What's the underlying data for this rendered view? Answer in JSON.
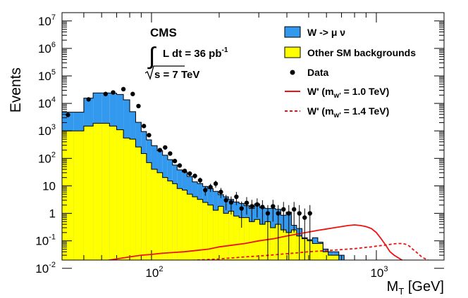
{
  "chart_data": {
    "type": "histogram",
    "title": "",
    "xlabel": "M",
    "xlabel_sub": "T",
    "xlabel_unit": " [GeV]",
    "ylabel": "Events",
    "x_scale": "log",
    "y_scale": "log",
    "xlim": [
      40,
      2000
    ],
    "ylim": [
      0.02,
      20000000
    ],
    "y_ticks": [
      {
        "value": 10000000,
        "base": "10",
        "exp": "7"
      },
      {
        "value": 1000000,
        "base": "10",
        "exp": "6"
      },
      {
        "value": 100000,
        "base": "10",
        "exp": "5"
      },
      {
        "value": 10000,
        "base": "10",
        "exp": "4"
      },
      {
        "value": 1000,
        "base": "10",
        "exp": "3"
      },
      {
        "value": 100,
        "base": "10",
        "exp": "2"
      },
      {
        "value": 10,
        "base": "10",
        "exp": ""
      },
      {
        "value": 1,
        "base": "1",
        "exp": ""
      },
      {
        "value": 0.1,
        "base": "10",
        "exp": "-1"
      },
      {
        "value": 0.01,
        "base": "10",
        "exp": "-2"
      }
    ],
    "x_ticks": [
      {
        "value": 100,
        "base": "10",
        "exp": "2"
      },
      {
        "value": 1000,
        "base": "10",
        "exp": "3"
      }
    ],
    "annotations": {
      "experiment": "CMS",
      "integral_sign": "∫",
      "lumi_text": "L dt = 36 pb",
      "lumi_exp": "-1",
      "energy_text": "s = 7 TeV"
    },
    "legend": {
      "position": "top-right",
      "entries": [
        {
          "label": "W -> μ ν",
          "style": "fill",
          "color": "#3399ee"
        },
        {
          "label": "Other SM backgrounds",
          "style": "fill",
          "color": "#ffff00"
        },
        {
          "label": "Data",
          "style": "marker",
          "color": "#000000"
        },
        {
          "label": "W' (m",
          "sub": "w'",
          "suffix": " = 1.0 TeV)",
          "style": "solid-line",
          "color": "#ee1111"
        },
        {
          "label": "W' (m",
          "sub": "w'",
          "suffix": " = 1.4 TeV)",
          "style": "dashed-line",
          "color": "#ee1111"
        }
      ]
    },
    "bin_edges": [
      40,
      45,
      50,
      55,
      60,
      65,
      70,
      75,
      80,
      85,
      90,
      95,
      100,
      106,
      112,
      118,
      124,
      130,
      137,
      144,
      152,
      160,
      169,
      178,
      188,
      198,
      209,
      220,
      232,
      245,
      258,
      272,
      287,
      303,
      320,
      338,
      356,
      376,
      397,
      419,
      442,
      467,
      493,
      520,
      549,
      579,
      611,
      645,
      681,
      719,
      759,
      801,
      845,
      892,
      941,
      993,
      1048,
      1106,
      1167,
      1232,
      1300,
      1372,
      1448,
      1528,
      1613,
      1702,
      1796,
      1896,
      2000
    ],
    "series": [
      {
        "name": "Other SM backgrounds",
        "color": "#ffff00",
        "values": [
          1000,
          1000,
          1500,
          1900,
          1900,
          1500,
          1100,
          550,
          500,
          260,
          150,
          70,
          40,
          30,
          20,
          15,
          12,
          8,
          7,
          5,
          4,
          3.2,
          2.5,
          2,
          1.3,
          1.8,
          1,
          1.2,
          0.8,
          0.7,
          0.7,
          0.5,
          0.6,
          0.4,
          0.5,
          0.3,
          0.4,
          0.25,
          0.2,
          0.25,
          0.15,
          0.12,
          0.1,
          0.08,
          0.08,
          0.04,
          0.03,
          0.03,
          0.02,
          0.01,
          0.01,
          0.01,
          0.01,
          0.01,
          0.01,
          0.01,
          0.01,
          0.01,
          0.01,
          0.01,
          0.01,
          0.01,
          0.01,
          0.01,
          0.01,
          0.01,
          0.01,
          0.01
        ]
      },
      {
        "name": "W -> μ ν",
        "color": "#3399ee",
        "values": [
          3800,
          3800,
          14000,
          22000,
          22000,
          22000,
          20000,
          13000,
          4500,
          1800,
          800,
          400,
          250,
          160,
          110,
          75,
          45,
          30,
          25,
          17,
          10,
          9,
          7,
          6,
          5,
          3,
          3,
          2,
          1.8,
          1.6,
          1.2,
          1,
          1.6,
          1.2,
          1,
          1.2,
          1,
          0.6,
          0.9,
          0.12,
          0.13,
          0.01,
          0.01,
          0.05,
          0.01,
          0.01,
          0.01,
          0.01,
          0.01,
          0.01,
          0.01,
          0.01,
          0.01,
          0.01,
          0.01,
          0.01,
          0.01,
          0.01,
          0.01,
          0.01,
          0.01,
          0.01,
          0.01,
          0.01,
          0.01,
          0.01,
          0.01,
          0.01
        ]
      },
      {
        "name": "W' (mw' = 1.0 TeV)",
        "color": "#ee1111",
        "style": "solid",
        "x": [
          40,
          50,
          60,
          70,
          80,
          90,
          100,
          110,
          120,
          140,
          160,
          180,
          200,
          230,
          260,
          300,
          350,
          400,
          450,
          500,
          550,
          600,
          650,
          700,
          750,
          800,
          850,
          900,
          950,
          1000,
          1050,
          1100,
          1150,
          1200,
          1300,
          1400,
          1500,
          1600,
          1700,
          1800,
          1900,
          2000
        ],
        "values": [
          0.012,
          0.015,
          0.018,
          0.022,
          0.026,
          0.03,
          0.032,
          0.035,
          0.037,
          0.04,
          0.045,
          0.05,
          0.06,
          0.07,
          0.08,
          0.1,
          0.12,
          0.15,
          0.18,
          0.21,
          0.24,
          0.27,
          0.3,
          0.33,
          0.36,
          0.38,
          0.36,
          0.33,
          0.28,
          0.2,
          0.12,
          0.07,
          0.04,
          0.03,
          0.02,
          0.015,
          0.012,
          0.01,
          0.012,
          0.01,
          0.011,
          0.01
        ]
      },
      {
        "name": "W' (mw' = 1.4 TeV)",
        "color": "#ee1111",
        "style": "dashed",
        "x": [
          50,
          60,
          70,
          80,
          90,
          100,
          120,
          140,
          160,
          180,
          200,
          230,
          260,
          300,
          350,
          400,
          450,
          500,
          550,
          600,
          650,
          700,
          750,
          800,
          850,
          900,
          950,
          1000,
          1100,
          1200,
          1250,
          1300,
          1350,
          1400,
          1450,
          1500,
          1600,
          1700,
          1800,
          1900,
          2000
        ],
        "values": [
          0.012,
          0.014,
          0.015,
          0.016,
          0.017,
          0.017,
          0.018,
          0.019,
          0.02,
          0.021,
          0.022,
          0.024,
          0.026,
          0.028,
          0.031,
          0.034,
          0.037,
          0.04,
          0.042,
          0.044,
          0.046,
          0.048,
          0.05,
          0.052,
          0.055,
          0.058,
          0.06,
          0.064,
          0.07,
          0.078,
          0.08,
          0.08,
          0.075,
          0.065,
          0.05,
          0.04,
          0.025,
          0.02,
          0.015,
          0.012,
          0.01
        ]
      }
    ],
    "data_points": {
      "name": "Data",
      "x": [
        42.5,
        52.5,
        62.5,
        67.5,
        75,
        82.5,
        87.5,
        92.5,
        97.5,
        109,
        115,
        121,
        127,
        133.5,
        140.5,
        148,
        156,
        164.5,
        173.5,
        183,
        193,
        203.5,
        214.5,
        226,
        238.5,
        251.5,
        265,
        279.5,
        295,
        311.5,
        329,
        347,
        366,
        386.5,
        408,
        430.5,
        454.5,
        480,
        506.5
      ],
      "y": [
        3800,
        14000,
        22000,
        25000,
        33000,
        22000,
        8000,
        1500,
        700,
        200,
        250,
        150,
        80,
        55,
        35,
        28,
        23,
        16,
        7,
        9,
        12,
        6,
        3,
        2.5,
        4,
        1.5,
        2.4,
        1.8,
        2.1,
        1.7,
        1,
        1.8,
        1,
        1.4,
        1,
        1.4,
        1,
        0.7,
        1
      ],
      "yerr": [
        62,
        118,
        148,
        158,
        182,
        148,
        89,
        39,
        26,
        14,
        16,
        12,
        9,
        7,
        6,
        5,
        5,
        4,
        2.6,
        3,
        3.5,
        2.4,
        1.7,
        1.6,
        2,
        1.2,
        1.5,
        1.3,
        1.4,
        1.3,
        1,
        1.3,
        1,
        1.2,
        1,
        1.2,
        1,
        0.8,
        1
      ]
    }
  }
}
